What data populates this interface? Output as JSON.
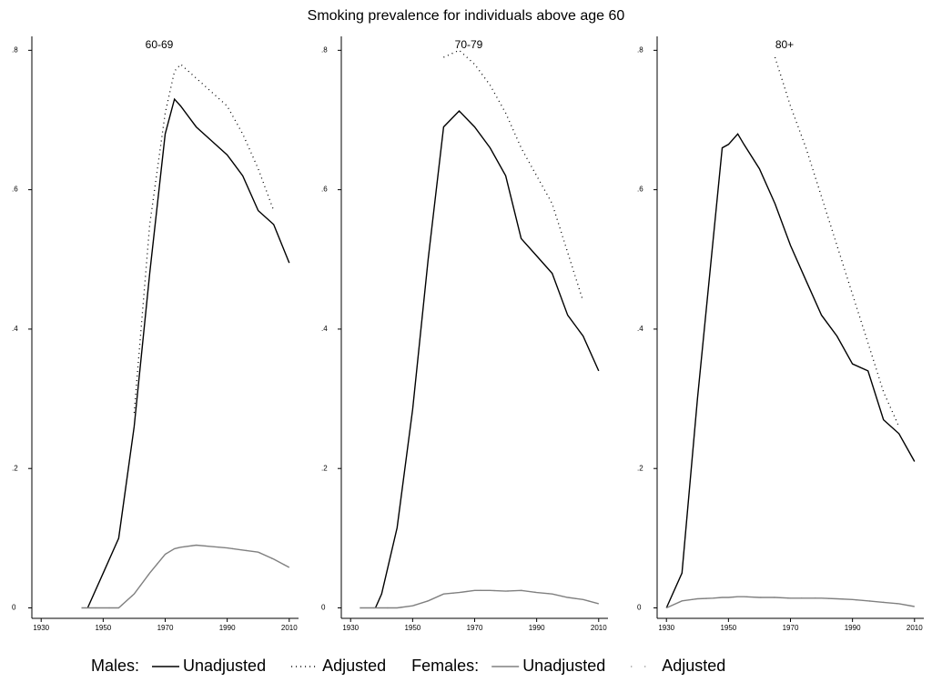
{
  "title": "Smoking prevalence for individuals above age 60",
  "chart_data": [
    {
      "type": "line",
      "title": "60-69",
      "x": [
        1943,
        1945,
        1950,
        1955,
        1960,
        1965,
        1970,
        1973,
        1975,
        1980,
        1985,
        1990,
        1995,
        2000,
        2005,
        2010
      ],
      "series": [
        {
          "group": "Males:",
          "name": "Unadjusted",
          "color": "#000000",
          "style": "solid",
          "values": [
            null,
            0,
            0.05,
            0.1,
            0.26,
            0.48,
            0.68,
            0.73,
            0.72,
            0.69,
            0.67,
            0.65,
            0.62,
            0.57,
            0.55,
            0.495
          ]
        },
        {
          "group": "Males:",
          "name": "Adjusted",
          "color": "#000000",
          "style": "dotted",
          "values": [
            null,
            null,
            null,
            null,
            0.28,
            0.55,
            0.71,
            0.77,
            0.78,
            0.76,
            0.74,
            0.72,
            0.68,
            0.63,
            0.57,
            null
          ]
        },
        {
          "group": "Females:",
          "name": "Unadjusted",
          "color": "#808080",
          "style": "solid",
          "values": [
            0,
            0,
            0,
            0,
            0.02,
            0.05,
            0.077,
            0.085,
            0.087,
            0.09,
            0.088,
            0.086,
            0.083,
            0.08,
            0.07,
            0.058
          ]
        },
        {
          "group": "Females:",
          "name": "Adjusted",
          "color": "#808080",
          "style": "sparse",
          "values": [
            0,
            0,
            0,
            0,
            0.02,
            0.05,
            0.077,
            0.085,
            0.087,
            0.09,
            0.088,
            0.086,
            0.083,
            0.08,
            0.07,
            0.058
          ]
        }
      ],
      "xlim": [
        1927,
        2013
      ],
      "xticks": [
        1930,
        1950,
        1970,
        1990,
        2010
      ],
      "ylim": [
        -0.015,
        0.82
      ],
      "yticks": [
        0,
        {
          "value": 0.2,
          "label": ".2"
        },
        {
          "value": 0.4,
          "label": ".4"
        },
        {
          "value": 0.6,
          "label": ".6"
        },
        {
          "value": 0.8,
          "label": ".8"
        }
      ]
    },
    {
      "type": "line",
      "title": "70-79",
      "x": [
        1933,
        1938,
        1940,
        1945,
        1950,
        1955,
        1960,
        1965,
        1970,
        1975,
        1980,
        1985,
        1990,
        1995,
        2000,
        2005,
        2010
      ],
      "series": [
        {
          "group": "Males:",
          "name": "Unadjusted",
          "color": "#000000",
          "style": "solid",
          "values": [
            null,
            0,
            0.02,
            0.115,
            0.285,
            0.5,
            0.69,
            0.713,
            0.69,
            0.66,
            0.62,
            0.53,
            0.505,
            0.48,
            0.42,
            0.39,
            0.34
          ]
        },
        {
          "group": "Males:",
          "name": "Adjusted",
          "color": "#000000",
          "style": "dotted",
          "values": [
            null,
            null,
            null,
            null,
            null,
            null,
            0.79,
            0.8,
            0.78,
            0.75,
            0.71,
            0.66,
            0.62,
            0.58,
            0.51,
            0.44,
            null
          ]
        },
        {
          "group": "Females:",
          "name": "Unadjusted",
          "color": "#808080",
          "style": "solid",
          "values": [
            0,
            0,
            0,
            0,
            0.003,
            0.01,
            0.02,
            0.022,
            0.025,
            0.025,
            0.024,
            0.025,
            0.022,
            0.02,
            0.015,
            0.012,
            0.006
          ]
        },
        {
          "group": "Females:",
          "name": "Adjusted",
          "color": "#808080",
          "style": "sparse",
          "values": [
            0,
            0,
            0,
            0,
            0.003,
            0.01,
            0.02,
            0.022,
            0.025,
            0.025,
            0.024,
            0.025,
            0.022,
            0.02,
            0.015,
            0.012,
            0.006
          ]
        }
      ],
      "xlim": [
        1927,
        2013
      ],
      "xticks": [
        1930,
        1950,
        1970,
        1990,
        2010
      ],
      "ylim": [
        -0.015,
        0.82
      ],
      "yticks": [
        0,
        {
          "value": 0.2,
          "label": ".2"
        },
        {
          "value": 0.4,
          "label": ".4"
        },
        {
          "value": 0.6,
          "label": ".6"
        },
        {
          "value": 0.8,
          "label": ".8"
        }
      ]
    },
    {
      "type": "line",
      "title": "80+",
      "x": [
        1930,
        1935,
        1940,
        1945,
        1948,
        1950,
        1953,
        1955,
        1960,
        1965,
        1970,
        1975,
        1980,
        1985,
        1990,
        1995,
        2000,
        2005,
        2010
      ],
      "series": [
        {
          "group": "Males:",
          "name": "Unadjusted",
          "color": "#000000",
          "style": "solid",
          "values": [
            0,
            0.05,
            0.3,
            0.525,
            0.66,
            0.665,
            0.68,
            0.665,
            0.63,
            0.58,
            0.52,
            0.47,
            0.42,
            0.39,
            0.35,
            0.34,
            0.27,
            0.25,
            0.21
          ]
        },
        {
          "group": "Males:",
          "name": "Adjusted",
          "color": "#000000",
          "style": "dotted",
          "values": [
            null,
            null,
            null,
            null,
            null,
            null,
            null,
            null,
            null,
            0.79,
            0.72,
            0.66,
            0.59,
            0.52,
            0.45,
            0.38,
            0.31,
            0.26,
            null
          ]
        },
        {
          "group": "Females:",
          "name": "Unadjusted",
          "color": "#808080",
          "style": "solid",
          "values": [
            0,
            0.01,
            0.013,
            0.014,
            0.015,
            0.015,
            0.016,
            0.016,
            0.015,
            0.015,
            0.014,
            0.014,
            0.014,
            0.013,
            0.012,
            0.01,
            0.008,
            0.006,
            0.002
          ]
        },
        {
          "group": "Females:",
          "name": "Adjusted",
          "color": "#808080",
          "style": "sparse",
          "values": [
            0,
            0.01,
            0.013,
            0.014,
            0.015,
            0.015,
            0.016,
            0.016,
            0.015,
            0.015,
            0.014,
            0.014,
            0.014,
            0.013,
            0.012,
            0.01,
            0.008,
            0.006,
            0.002
          ]
        }
      ],
      "xlim": [
        1927,
        2013
      ],
      "xticks": [
        1930,
        1950,
        1970,
        1990,
        2010
      ],
      "ylim": [
        -0.015,
        0.82
      ],
      "yticks": [
        0,
        {
          "value": 0.2,
          "label": ".2"
        },
        {
          "value": 0.4,
          "label": ".4"
        },
        {
          "value": 0.6,
          "label": ".6"
        },
        {
          "value": 0.8,
          "label": ".8"
        }
      ]
    }
  ]
}
